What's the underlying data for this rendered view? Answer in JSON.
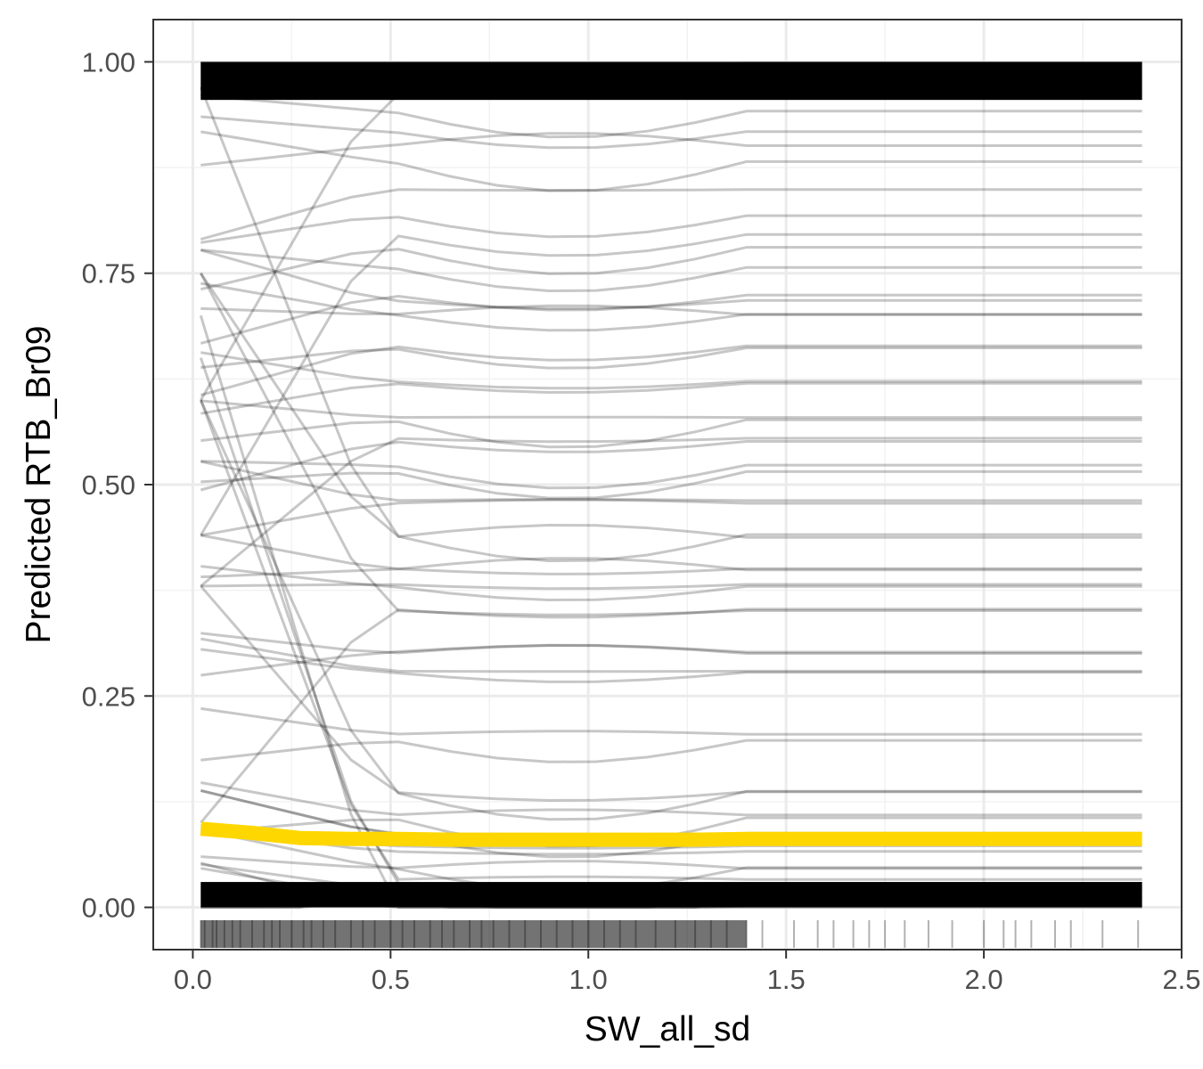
{
  "chart_data": {
    "type": "line",
    "title": "",
    "xlabel": "SW_all_sd",
    "ylabel": "Predicted RTB_Br09",
    "xlim": [
      -0.1,
      2.5
    ],
    "ylim": [
      -0.05,
      1.05
    ],
    "grid": true,
    "legend": "none",
    "x_ticks": [
      0.0,
      0.5,
      1.0,
      1.5,
      2.0,
      2.5
    ],
    "x_tick_labels": [
      "0.0",
      "0.5",
      "1.0",
      "1.5",
      "2.0",
      "2.5"
    ],
    "y_ticks": [
      0.0,
      0.25,
      0.5,
      0.75,
      1.0
    ],
    "y_tick_labels": [
      "0.00",
      "0.25",
      "0.50",
      "0.75",
      "1.00"
    ],
    "x": [
      0.02,
      0.15,
      0.27,
      0.4,
      0.52,
      0.65,
      0.77,
      0.9,
      1.02,
      1.15,
      1.27,
      1.4,
      1.52,
      1.65,
      1.77,
      1.9,
      2.02,
      2.15,
      2.27,
      2.4
    ],
    "average_curve": {
      "color": "#FFD700",
      "values": [
        0.093,
        0.088,
        0.082,
        0.081,
        0.081,
        0.08,
        0.08,
        0.08,
        0.08,
        0.08,
        0.08,
        0.081,
        0.081,
        0.081,
        0.081,
        0.081,
        0.081,
        0.081,
        0.081,
        0.081
      ]
    },
    "individual_curves": {
      "color": "#000000",
      "count_shown": 60,
      "levels_at_right": [
        0.0,
        0.01,
        0.02,
        0.03,
        0.05,
        0.07,
        0.09,
        0.11,
        0.14,
        0.2,
        0.28,
        0.3,
        0.35,
        0.38,
        0.4,
        0.44,
        0.48,
        0.52,
        0.55,
        0.58,
        0.62,
        0.66,
        0.7,
        0.72,
        0.76,
        0.78,
        0.8,
        0.82,
        0.85,
        0.88,
        0.9,
        0.92,
        0.94,
        0.96,
        0.98,
        1.0
      ],
      "levels_at_left": [
        0.0,
        0.03,
        0.06,
        0.1,
        0.14,
        0.18,
        0.22,
        0.26,
        0.3,
        0.38,
        0.44,
        0.5,
        0.56,
        0.6,
        0.65,
        0.7,
        0.75,
        0.8,
        0.84,
        0.88,
        0.92,
        0.95,
        0.97,
        1.0
      ]
    },
    "rug_x": [
      0.02,
      0.03,
      0.05,
      0.06,
      0.08,
      0.1,
      0.12,
      0.15,
      0.18,
      0.2,
      0.22,
      0.25,
      0.28,
      0.3,
      0.33,
      0.36,
      0.4,
      0.43,
      0.46,
      0.5,
      0.53,
      0.56,
      0.6,
      0.63,
      0.66,
      0.7,
      0.73,
      0.76,
      0.8,
      0.84,
      0.88,
      0.92,
      0.96,
      1.0,
      1.04,
      1.08,
      1.12,
      1.17,
      1.22,
      1.27,
      1.31,
      1.35,
      1.4,
      1.44,
      1.52,
      1.58,
      1.62,
      1.67,
      1.71,
      1.75,
      1.8,
      1.86,
      1.92,
      2.0,
      2.05,
      2.08,
      2.12,
      2.18,
      2.22,
      2.3,
      2.39
    ]
  }
}
